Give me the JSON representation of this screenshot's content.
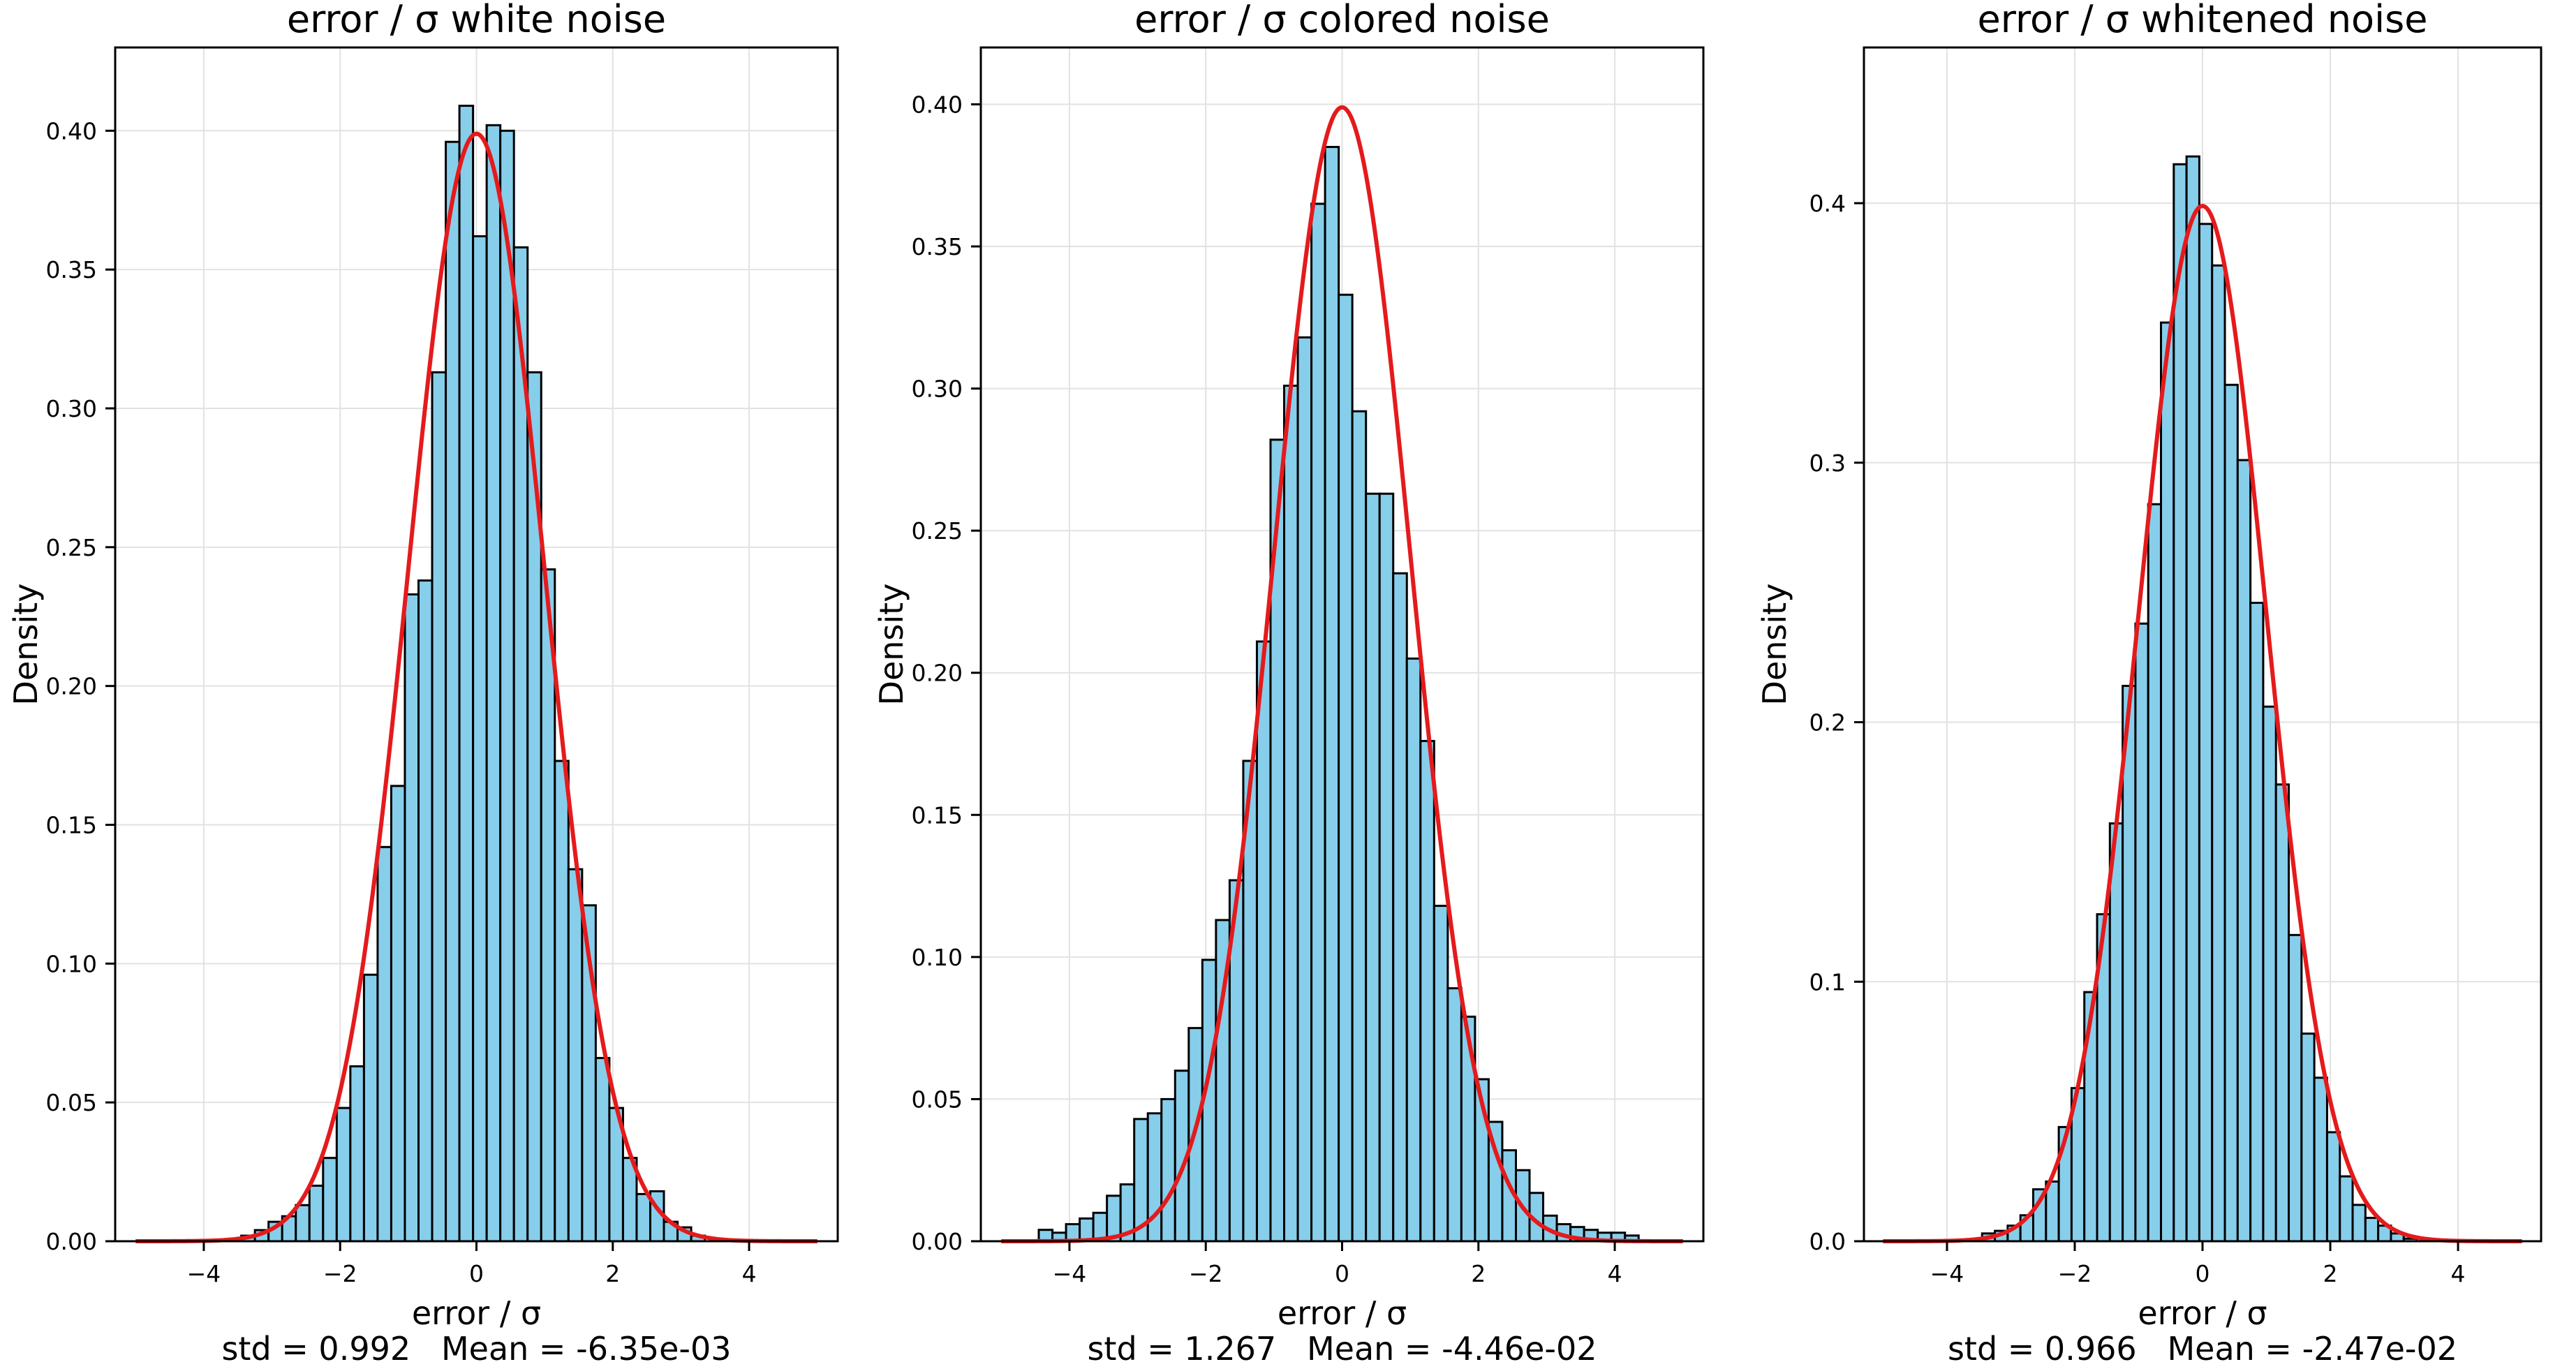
{
  "chart_data": [
    {
      "type": "bar",
      "title": "error / σ white noise",
      "xlabel": "error / σ",
      "ylabel": "Density",
      "stats": "std = 0.992   Mean = -6.35e-03",
      "xlim": [
        -5.3,
        5.3
      ],
      "ylim": [
        0,
        0.43
      ],
      "xticks": [
        -4,
        -2,
        0,
        2,
        4
      ],
      "yticks": [
        0.0,
        0.05,
        0.1,
        0.15,
        0.2,
        0.25,
        0.3,
        0.35,
        0.4
      ],
      "ytick_labels": [
        "0.00",
        "0.05",
        "0.10",
        "0.15",
        "0.20",
        "0.25",
        "0.30",
        "0.35",
        "0.40"
      ],
      "grid": true,
      "bin_start": -3.45,
      "bin_width": 0.2,
      "values": [
        0.002,
        0.004,
        0.007,
        0.009,
        0.013,
        0.02,
        0.03,
        0.048,
        0.063,
        0.096,
        0.142,
        0.164,
        0.233,
        0.238,
        0.313,
        0.396,
        0.409,
        0.362,
        0.402,
        0.4,
        0.358,
        0.313,
        0.242,
        0.173,
        0.134,
        0.121,
        0.066,
        0.048,
        0.03,
        0.017,
        0.018,
        0.007,
        0.005,
        0.002
      ],
      "pdf_mean": 0.0,
      "pdf_std": 1.0
    },
    {
      "type": "bar",
      "title": "error / σ colored noise",
      "xlabel": "error / σ",
      "ylabel": "Density",
      "stats": "std = 1.267   Mean = -4.46e-02",
      "xlim": [
        -5.3,
        5.3
      ],
      "ylim": [
        0,
        0.42
      ],
      "xticks": [
        -4,
        -2,
        0,
        2,
        4
      ],
      "yticks": [
        0.0,
        0.05,
        0.1,
        0.15,
        0.2,
        0.25,
        0.3,
        0.35,
        0.4
      ],
      "ytick_labels": [
        "0.00",
        "0.05",
        "0.10",
        "0.15",
        "0.20",
        "0.25",
        "0.30",
        "0.35",
        "0.40"
      ],
      "grid": true,
      "bin_start": -4.45,
      "bin_width": 0.2,
      "values": [
        0.004,
        0.003,
        0.006,
        0.008,
        0.01,
        0.016,
        0.02,
        0.043,
        0.045,
        0.05,
        0.06,
        0.075,
        0.099,
        0.113,
        0.127,
        0.169,
        0.211,
        0.282,
        0.301,
        0.318,
        0.365,
        0.385,
        0.333,
        0.292,
        0.263,
        0.263,
        0.235,
        0.205,
        0.176,
        0.118,
        0.089,
        0.079,
        0.057,
        0.042,
        0.032,
        0.025,
        0.017,
        0.009,
        0.006,
        0.005,
        0.004,
        0.003,
        0.003,
        0.002
      ],
      "pdf_mean": 0.0,
      "pdf_std": 1.0
    },
    {
      "type": "bar",
      "title": "error / σ whitened noise",
      "xlabel": "error / σ",
      "ylabel": "Density",
      "stats": "std = 0.966   Mean = -2.47e-02",
      "xlim": [
        -5.3,
        5.3
      ],
      "ylim": [
        0,
        0.46
      ],
      "xticks": [
        -4,
        -2,
        0,
        2,
        4
      ],
      "yticks": [
        0.0,
        0.1,
        0.2,
        0.3,
        0.4
      ],
      "ytick_labels": [
        "0.0",
        "0.1",
        "0.2",
        "0.3",
        "0.4"
      ],
      "grid": true,
      "bin_start": -3.45,
      "bin_width": 0.2,
      "values": [
        0.003,
        0.004,
        0.006,
        0.01,
        0.02,
        0.023,
        0.044,
        0.059,
        0.096,
        0.126,
        0.161,
        0.214,
        0.238,
        0.284,
        0.354,
        0.415,
        0.418,
        0.392,
        0.376,
        0.33,
        0.301,
        0.246,
        0.206,
        0.176,
        0.118,
        0.08,
        0.063,
        0.042,
        0.025,
        0.014,
        0.009,
        0.006,
        0.003,
        0.001
      ],
      "pdf_mean": 0.0,
      "pdf_std": 1.0
    }
  ],
  "colors": {
    "bar_fill": "#87CEEB",
    "bar_edge": "#000000",
    "pdf_line": "#E41A1C",
    "grid": "#E2E2E2"
  }
}
